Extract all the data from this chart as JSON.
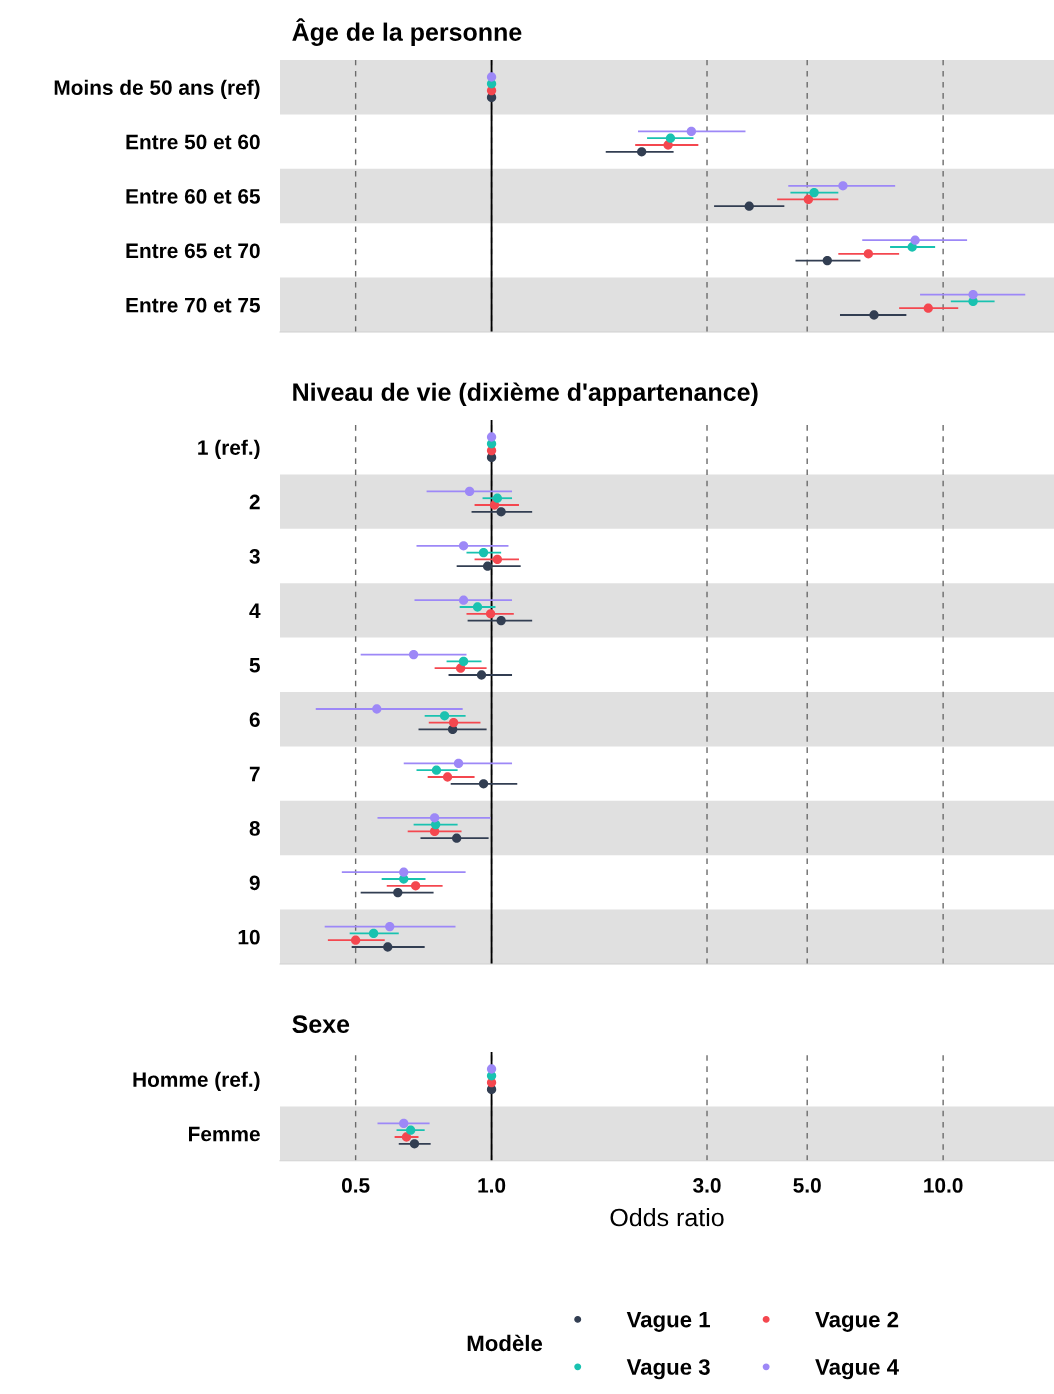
{
  "chart_data": [
    {
      "type": "scatter",
      "orientation": "horizontal",
      "title": "Âge de la personne",
      "log": "x",
      "grid": "x",
      "marker": "circle",
      "tick_labels": "y",
      "legend": "bottom",
      "legend_title": "Modèle",
      "categories": [
        "Moins de 50 ans (ref)",
        "Entre 50 et 60",
        "Entre 60 et 65",
        "Entre 65 et 70",
        "Entre 70 et 75"
      ],
      "xlim": [
        0.34,
        17.6
      ],
      "xticks": [
        {
          "value": 0.5,
          "label": null
        },
        {
          "value": 1,
          "label": null
        },
        {
          "value": 3,
          "label": null
        },
        {
          "value": 5,
          "label": null
        },
        {
          "value": 10,
          "label": null
        }
      ],
      "ref_lines": [
        {
          "axis": "x",
          "value": 1,
          "label": null,
          "color": "#000000",
          "line_style": "solid"
        }
      ],
      "bands": [
        {
          "axis": "y",
          "from": "Moins de 50 ans (ref)",
          "to": "Moins de 50 ans (ref)",
          "label": null,
          "color": "#e0e0e0"
        },
        {
          "axis": "y",
          "from": "Entre 60 et 65",
          "to": "Entre 60 et 65",
          "label": null,
          "color": "#e0e0e0"
        },
        {
          "axis": "y",
          "from": "Entre 70 et 75",
          "to": "Entre 70 et 75",
          "label": null,
          "color": "#e0e0e0"
        }
      ],
      "series": [
        {
          "name": "Vague 1",
          "color": "#323e52",
          "values": [
            1,
            2.15,
            3.72,
            5.54,
            7.03
          ],
          "errors": [
            null,
            [
              1.79,
              2.53
            ],
            [
              3.11,
              4.45
            ],
            [
              4.71,
              6.56
            ],
            [
              5.91,
              8.29
            ]
          ]
        },
        {
          "name": "Vague 2",
          "color": "#f4474f",
          "values": [
            1,
            2.46,
            5.03,
            6.83,
            9.27
          ],
          "errors": [
            null,
            [
              2.08,
              2.87
            ],
            [
              4.29,
              5.86
            ],
            [
              5.86,
              7.99
            ],
            [
              7.99,
              10.8
            ]
          ]
        },
        {
          "name": "Vague 3",
          "color": "#19c2b0",
          "values": [
            1,
            2.49,
            5.18,
            8.54,
            11.65
          ],
          "errors": [
            null,
            [
              2.21,
              2.8
            ],
            [
              4.59,
              5.86
            ],
            [
              7.63,
              9.6
            ],
            [
              10.4,
              13.0
            ]
          ]
        },
        {
          "name": "Vague 4",
          "color": "#9d88f7",
          "values": [
            1,
            2.77,
            6.0,
            8.67,
            11.65
          ],
          "errors": [
            null,
            [
              2.11,
              3.65
            ],
            [
              4.54,
              7.83
            ],
            [
              6.62,
              11.3
            ],
            [
              8.89,
              15.2
            ]
          ]
        }
      ]
    },
    {
      "type": "scatter",
      "orientation": "horizontal",
      "title": "Niveau de vie (dixième d'appartenance)",
      "log": "x",
      "grid": "x",
      "marker": "circle",
      "tick_labels": "y",
      "categories": [
        "1 (ref.)",
        "2",
        "3",
        "4",
        "5",
        "6",
        "7",
        "8",
        "9",
        "10"
      ],
      "xlim": [
        0.34,
        17.6
      ],
      "xticks": [
        {
          "value": 0.5,
          "label": null
        },
        {
          "value": 1,
          "label": null
        },
        {
          "value": 3,
          "label": null
        },
        {
          "value": 5,
          "label": null
        },
        {
          "value": 10,
          "label": null
        }
      ],
      "ref_lines": [
        {
          "axis": "x",
          "value": 1,
          "label": null,
          "color": "#000000",
          "line_style": "solid"
        }
      ],
      "bands": [
        {
          "axis": "y",
          "from": "2",
          "to": "2",
          "label": null,
          "color": "#e0e0e0"
        },
        {
          "axis": "y",
          "from": "4",
          "to": "4",
          "label": null,
          "color": "#e0e0e0"
        },
        {
          "axis": "y",
          "from": "6",
          "to": "6",
          "label": null,
          "color": "#e0e0e0"
        },
        {
          "axis": "y",
          "from": "8",
          "to": "8",
          "label": null,
          "color": "#e0e0e0"
        },
        {
          "axis": "y",
          "from": "10",
          "to": "10",
          "label": null,
          "color": "#e0e0e0"
        }
      ],
      "series": [
        {
          "color": "#323e52",
          "values": [
            1,
            1.05,
            0.98,
            1.05,
            0.95,
            0.82,
            0.96,
            0.837,
            0.62,
            0.589
          ],
          "errors": [
            null,
            [
              0.903,
              1.23
            ],
            [
              0.837,
              1.16
            ],
            [
              0.885,
              1.23
            ],
            [
              0.803,
              1.11
            ],
            [
              0.689,
              0.975
            ],
            [
              0.812,
              1.14
            ],
            [
              0.696,
              0.985
            ],
            [
              0.513,
              0.744
            ],
            [
              0.49,
              0.711
            ]
          ]
        },
        {
          "color": "#f4474f",
          "values": [
            1,
            1.015,
            1.03,
            0.995,
            0.854,
            0.824,
            0.799,
            0.748,
            0.679,
            0.5
          ],
          "errors": [
            null,
            [
              0.917,
              1.15
            ],
            [
              0.917,
              1.15
            ],
            [
              0.88,
              1.12
            ],
            [
              0.748,
              0.975
            ],
            [
              0.726,
              0.945
            ],
            [
              0.722,
              0.917
            ],
            [
              0.652,
              0.858
            ],
            [
              0.586,
              0.779
            ],
            [
              0.434,
              0.58
            ]
          ]
        },
        {
          "color": "#19c2b0",
          "values": [
            1,
            1.03,
            0.96,
            0.931,
            0.867,
            0.787,
            0.755,
            0.752,
            0.639,
            0.548
          ],
          "errors": [
            null,
            [
              0.955,
              1.11
            ],
            [
              0.88,
              1.05
            ],
            [
              0.85,
              1.02
            ],
            [
              0.795,
              0.95
            ],
            [
              0.711,
              0.876
            ],
            [
              0.682,
              0.841
            ],
            [
              0.672,
              0.841
            ],
            [
              0.571,
              0.714
            ],
            [
              0.485,
              0.623
            ]
          ]
        },
        {
          "color": "#9d88f7",
          "values": [
            1,
            0.894,
            0.867,
            0.867,
            0.672,
            0.557,
            0.845,
            0.748,
            0.639,
            0.595
          ],
          "errors": [
            null,
            [
              0.718,
              1.11
            ],
            [
              0.682,
              1.09
            ],
            [
              0.675,
              1.11
            ],
            [
              0.513,
              0.88
            ],
            [
              0.408,
              0.863
            ],
            [
              0.639,
              1.11
            ],
            [
              0.559,
              0.995
            ],
            [
              0.466,
              0.876
            ],
            [
              0.427,
              0.832
            ]
          ]
        }
      ]
    },
    {
      "type": "scatter",
      "orientation": "horizontal",
      "title": "Sexe",
      "log": "x",
      "grid": "x",
      "marker": "circle",
      "xlabel": "Odds ratio",
      "categories": [
        "Homme (ref.)",
        "Femme"
      ],
      "xlim": [
        0.34,
        17.6
      ],
      "xticks": [
        0.5,
        {
          "value": 1,
          "label": "1.0"
        },
        {
          "value": 3,
          "label": "3.0"
        },
        {
          "value": 5,
          "label": "5.0"
        },
        {
          "value": 10,
          "label": "10.0"
        }
      ],
      "ref_lines": [
        {
          "axis": "x",
          "value": 1,
          "label": null,
          "color": "#000000",
          "line_style": "solid"
        }
      ],
      "bands": [
        {
          "axis": "y",
          "from": "Femme",
          "to": "Femme",
          "label": null,
          "color": "#e0e0e0"
        }
      ],
      "series": [
        {
          "color": "#323e52",
          "values": [
            1,
            0.675
          ],
          "errors": [
            null,
            [
              0.623,
              0.733
            ]
          ]
        },
        {
          "color": "#f4474f",
          "values": [
            1,
            0.648
          ],
          "errors": [
            null,
            [
              0.61,
              0.689
            ]
          ]
        },
        {
          "color": "#19c2b0",
          "values": [
            1,
            0.662
          ],
          "errors": [
            null,
            [
              0.616,
              0.711
            ]
          ]
        },
        {
          "color": "#9d88f7",
          "values": [
            1,
            0.639
          ],
          "errors": [
            null,
            [
              0.559,
              0.729
            ]
          ]
        }
      ]
    }
  ]
}
